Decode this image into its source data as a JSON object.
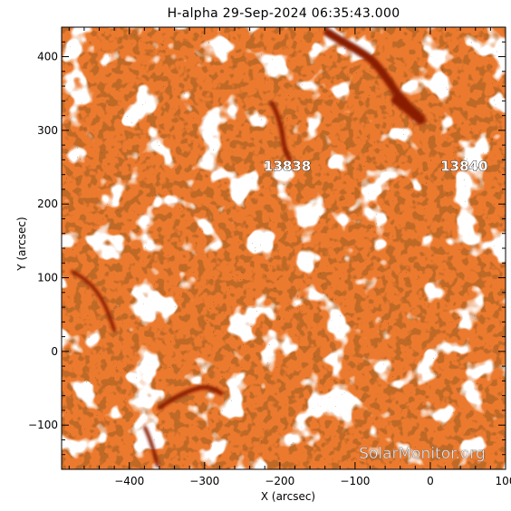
{
  "title": "H-alpha 29-Sep-2024 06:35:43.000",
  "x_axis": {
    "label": "X (arcsec)",
    "range": [
      -490,
      100
    ],
    "ticks": [
      -400,
      -300,
      -200,
      -100,
      0,
      100
    ],
    "tick_labels": [
      "−400",
      "−300",
      "−200",
      "−100",
      "0",
      "100"
    ]
  },
  "y_axis": {
    "label": "Y (arcsec)",
    "range": [
      -160,
      440
    ],
    "ticks": [
      -100,
      0,
      100,
      200,
      300,
      400
    ],
    "tick_labels": [
      "−100",
      "0",
      "100",
      "200",
      "300",
      "400"
    ]
  },
  "regions": [
    {
      "label": "13838",
      "x": -190,
      "y": 245
    },
    {
      "label": "13840",
      "x": 45,
      "y": 245
    }
  ],
  "watermark": "SolarMonitor.org",
  "colors": {
    "chromosphere": "#ec7a2e",
    "chromosphere_dark": "#d8601c",
    "filament": "#8a1c06",
    "plage": "#ffffff",
    "axes": "#000000"
  }
}
